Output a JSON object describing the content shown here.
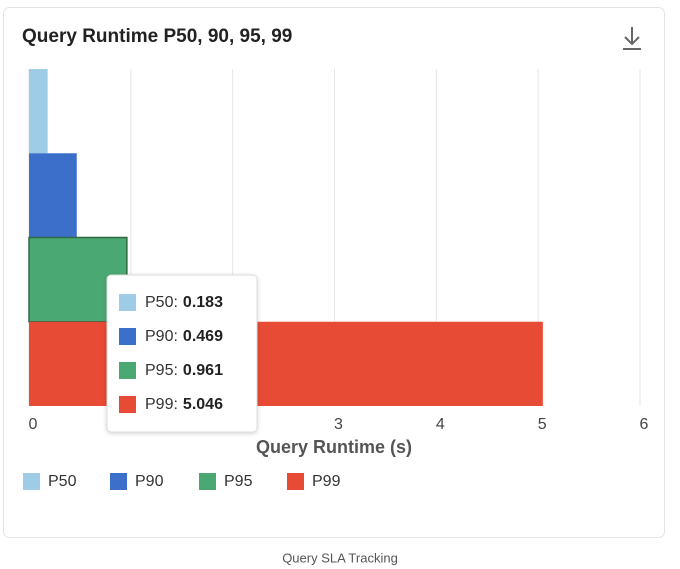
{
  "chart_data": {
    "type": "bar",
    "orientation": "horizontal",
    "title": "Query Runtime P50, 90, 95, 99",
    "x_label": "Query Runtime (s)",
    "series": [
      {
        "name": "P50",
        "color": "#9ecbe6",
        "values": [
          0.183
        ]
      },
      {
        "name": "P90",
        "color": "#3b6fca",
        "values": [
          0.469
        ]
      },
      {
        "name": "P95",
        "color": "#4aa872",
        "values": [
          0.961
        ]
      },
      {
        "name": "P99",
        "color": "#e84b35",
        "values": [
          5.046
        ]
      }
    ],
    "xlim": [
      0,
      6
    ],
    "xticks": [
      0,
      1,
      2,
      3,
      4,
      5,
      6
    ],
    "grid": true,
    "legend": "bottom",
    "tooltip": {
      "labels": [
        "P50:",
        "P90:",
        "P95:",
        "P99:"
      ]
    }
  },
  "caption": "Query SLA Tracking"
}
